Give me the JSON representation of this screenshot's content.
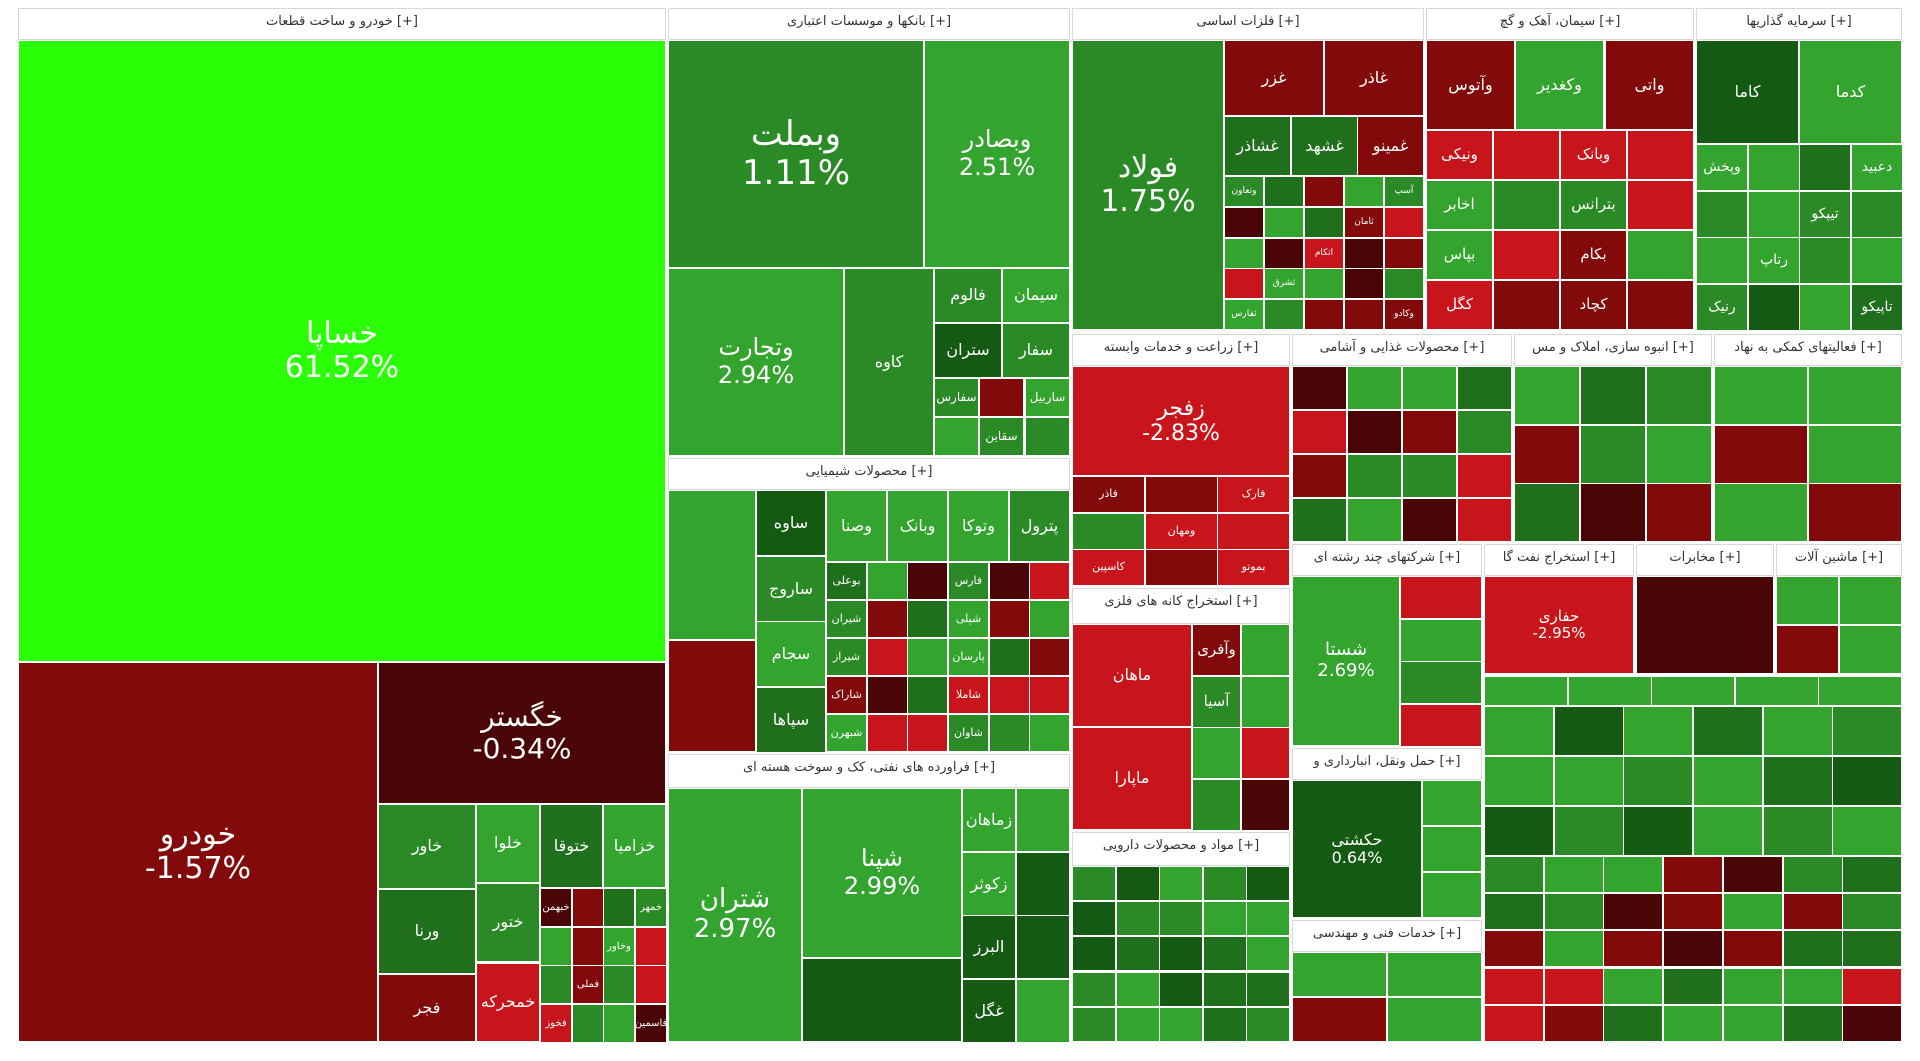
{
  "chart_data": {
    "type": "treemap",
    "colors": {
      "bright_green": "#2aff06",
      "green": "#33a42e",
      "mid_green": "#2a8a26",
      "dark_green": "#1f6f1c",
      "deep_green": "#145a12",
      "red": "#c8151c",
      "dark_red": "#820a0a",
      "deep_red": "#4a0606"
    },
    "sectors": [
      {
        "id": "auto",
        "name": "خودرو و ساخت قطعات [+]"
      },
      {
        "id": "banks",
        "name": "بانکها و موسسات اعتباری [+]"
      },
      {
        "id": "metals",
        "name": "فلزات اساسی [+]"
      },
      {
        "id": "cement",
        "name": "سیمان، آهک و گچ [+]"
      },
      {
        "id": "invest",
        "name": "سرمایه گذاریها [+]"
      },
      {
        "id": "chem",
        "name": "محصولات شیمیایی [+]"
      },
      {
        "id": "oil",
        "name": "فراورده های نفتی، کک و سوخت هسته ای [+]"
      },
      {
        "id": "agri",
        "name": "زراعت و خدمات وابسته [+]"
      },
      {
        "id": "food",
        "name": "محصولات غذایی و آشامی [+]"
      },
      {
        "id": "real",
        "name": "انبوه سازی، املاک و مس [+]"
      },
      {
        "id": "aux",
        "name": "فعالیتهای کمکی به نهاد [+]"
      },
      {
        "id": "multi",
        "name": "شرکتهای چند رشته ای [+]"
      },
      {
        "id": "oilex",
        "name": "استخراج نفت گا [+]"
      },
      {
        "id": "telecom",
        "name": "مخابرات [+]"
      },
      {
        "id": "mach",
        "name": "ماشین آلات [+]"
      },
      {
        "id": "mining",
        "name": "استخراج کانه های فلزی [+]"
      },
      {
        "id": "transport",
        "name": "حمل ونقل، انبارداری و [+]"
      },
      {
        "id": "pharma",
        "name": "مواد و محصولات دارویی [+]"
      },
      {
        "id": "eng",
        "name": "خدمات فنی و مهندسی [+]"
      }
    ],
    "labeled_tiles": [
      {
        "symbol": "خساپا",
        "change": "61.52%",
        "value": 61.52,
        "sector": "auto"
      },
      {
        "symbol": "خودرو",
        "change": "-1.57%",
        "value": -1.57,
        "sector": "auto"
      },
      {
        "symbol": "خگستر",
        "change": "-0.34%",
        "value": -0.34,
        "sector": "auto"
      },
      {
        "symbol": "وبملت",
        "change": "1.11%",
        "value": 1.11,
        "sector": "banks"
      },
      {
        "symbol": "وبصادر",
        "change": "2.51%",
        "value": 2.51,
        "sector": "banks"
      },
      {
        "symbol": "وتجارت",
        "change": "2.94%",
        "value": 2.94,
        "sector": "banks"
      },
      {
        "symbol": "فولاد",
        "change": "1.75%",
        "value": 1.75,
        "sector": "metals"
      },
      {
        "symbol": "زفجر",
        "change": "-2.83%",
        "value": -2.83,
        "sector": "agri"
      },
      {
        "symbol": "شستا",
        "change": "2.69%",
        "value": 2.69,
        "sector": "multi"
      },
      {
        "symbol": "حفاری",
        "change": "-2.95%",
        "value": -2.95,
        "sector": "oilex"
      },
      {
        "symbol": "حکشتی",
        "change": "0.64%",
        "value": 0.64,
        "sector": "transport"
      },
      {
        "symbol": "شپنا",
        "change": "2.99%",
        "value": 2.99,
        "sector": "oil"
      },
      {
        "symbol": "شتران",
        "change": "2.97%",
        "value": 2.97,
        "sector": "oil"
      }
    ],
    "small_tiles": [
      {
        "symbol": "خاور"
      },
      {
        "symbol": "ورنا"
      },
      {
        "symbol": "خلوا"
      },
      {
        "symbol": "ختور"
      },
      {
        "symbol": "خمحرکه"
      },
      {
        "symbol": "ختوقا"
      },
      {
        "symbol": "خزامیا"
      },
      {
        "symbol": "خبهمن"
      },
      {
        "symbol": "خمهر"
      },
      {
        "symbol": "وخاور"
      },
      {
        "symbol": "فملی"
      },
      {
        "symbol": "فخوز"
      },
      {
        "symbol": "فاسمین"
      },
      {
        "symbol": "فجر"
      },
      {
        "symbol": "کاوه"
      },
      {
        "symbol": "فالوم"
      },
      {
        "symbol": "سیمان"
      },
      {
        "symbol": "ستران"
      },
      {
        "symbol": "سفار"
      },
      {
        "symbol": "سفارس"
      },
      {
        "symbol": "ساربیل"
      },
      {
        "symbol": "سقاین"
      },
      {
        "symbol": "ساوه"
      },
      {
        "symbol": "ساروج"
      },
      {
        "symbol": "سجام"
      },
      {
        "symbol": "سپاها"
      },
      {
        "symbol": "وصنا"
      },
      {
        "symbol": "وبانک"
      },
      {
        "symbol": "وتوکا"
      },
      {
        "symbol": "پترول"
      },
      {
        "symbol": "بوعلی"
      },
      {
        "symbol": "فارس"
      },
      {
        "symbol": "شیران"
      },
      {
        "symbol": "شپلی"
      },
      {
        "symbol": "شیراز"
      },
      {
        "symbol": "پارسان"
      },
      {
        "symbol": "شاراک"
      },
      {
        "symbol": "شاملا"
      },
      {
        "symbol": "شبهرن"
      },
      {
        "symbol": "شاوان"
      },
      {
        "symbol": "زماهان"
      },
      {
        "symbol": "زکوثر"
      },
      {
        "symbol": "البرز"
      },
      {
        "symbol": "غگل"
      },
      {
        "symbol": "غزر"
      },
      {
        "symbol": "غاذر"
      },
      {
        "symbol": "غشاذر"
      },
      {
        "symbol": "غشهد"
      },
      {
        "symbol": "غمینو"
      },
      {
        "symbol": "وتعاون"
      },
      {
        "symbol": "آسپ"
      },
      {
        "symbol": "ثامان"
      },
      {
        "symbol": "اتکام"
      },
      {
        "symbol": "ثشرق"
      },
      {
        "symbol": "ثفارس"
      },
      {
        "symbol": "وکادو"
      },
      {
        "symbol": "وآتوس"
      },
      {
        "symbol": "وکغدیر"
      },
      {
        "symbol": "واتی"
      },
      {
        "symbol": "ونیکی"
      },
      {
        "symbol": "وبانک"
      },
      {
        "symbol": "اخابر"
      },
      {
        "symbol": "بترانس"
      },
      {
        "symbol": "بپاس"
      },
      {
        "symbol": "بکام"
      },
      {
        "symbol": "کگل"
      },
      {
        "symbol": "کچاد"
      },
      {
        "symbol": "کاما"
      },
      {
        "symbol": "کدما"
      },
      {
        "symbol": "وپخش"
      },
      {
        "symbol": "دعبید"
      },
      {
        "symbol": "تیپکو"
      },
      {
        "symbol": "رتاپ"
      },
      {
        "symbol": "رنیک"
      },
      {
        "symbol": "تاپیکو"
      },
      {
        "symbol": "فاذر"
      },
      {
        "symbol": "فارک"
      },
      {
        "symbol": "ومهان"
      },
      {
        "symbol": "کاسپین"
      },
      {
        "symbol": "بموتو"
      },
      {
        "symbol": "ماهان"
      },
      {
        "symbol": "ماپارا"
      },
      {
        "symbol": "وآفری"
      },
      {
        "symbol": "آسیا"
      }
    ]
  }
}
